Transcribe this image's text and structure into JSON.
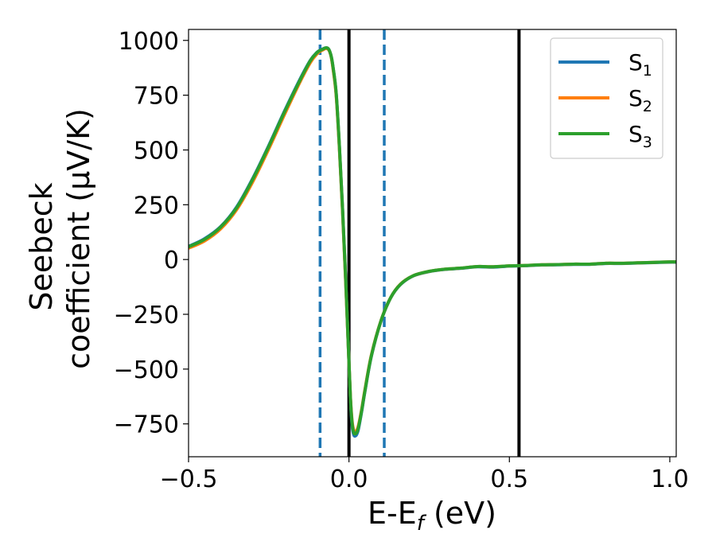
{
  "chart_data": {
    "type": "line",
    "xlabel": "E-E_f (eV)",
    "ylabel_line1": "Seebeck",
    "ylabel_line2": "coefficient  (μV/K)",
    "xlim": [
      -0.5,
      1.02
    ],
    "ylim": [
      -900,
      1050
    ],
    "xticks": [
      -0.5,
      0.0,
      0.5,
      1.0
    ],
    "xtick_labels": [
      "−0.5",
      "0.0",
      "0.5",
      "1.0"
    ],
    "yticks": [
      1000,
      750,
      500,
      250,
      0,
      -250,
      -500,
      -750
    ],
    "ytick_labels": [
      "1000",
      "750",
      "500",
      "250",
      "0",
      "−250",
      "−500",
      "−750"
    ],
    "grid": false,
    "legend_position": "top-right",
    "vlines": [
      {
        "x": -0.09,
        "style": "dashed",
        "color": "#1f77b4"
      },
      {
        "x": 0.11,
        "style": "dashed",
        "color": "#1f77b4"
      },
      {
        "x": 0.0,
        "style": "solid",
        "color": "#000000"
      },
      {
        "x": 0.53,
        "style": "solid",
        "color": "#000000"
      }
    ],
    "series": [
      {
        "name": "S_1",
        "legend_main": "S",
        "legend_sub": "1",
        "color": "#1f77b4",
        "x": [
          -0.5,
          -0.45,
          -0.4,
          -0.35,
          -0.3,
          -0.25,
          -0.2,
          -0.15,
          -0.12,
          -0.1,
          -0.09,
          -0.08,
          -0.075,
          -0.07,
          -0.065,
          -0.06,
          -0.055,
          -0.05,
          -0.04,
          -0.03,
          -0.02,
          -0.01,
          0.0,
          0.005,
          0.01,
          0.015,
          0.02,
          0.025,
          0.03,
          0.04,
          0.05,
          0.07,
          0.1,
          0.13,
          0.16,
          0.2,
          0.25,
          0.3,
          0.35,
          0.4,
          0.45,
          0.5,
          0.55,
          0.6,
          0.65,
          0.7,
          0.75,
          0.8,
          0.85,
          0.9,
          0.95,
          1.0,
          1.02
        ],
        "y": [
          60,
          95,
          150,
          240,
          370,
          520,
          680,
          830,
          910,
          945,
          955,
          962,
          965,
          966,
          963,
          950,
          925,
          880,
          760,
          520,
          230,
          -100,
          -470,
          -650,
          -760,
          -800,
          -805,
          -795,
          -770,
          -690,
          -600,
          -440,
          -280,
          -175,
          -115,
          -75,
          -55,
          -45,
          -40,
          -33,
          -35,
          -30,
          -28,
          -25,
          -24,
          -22,
          -22,
          -18,
          -18,
          -16,
          -14,
          -12,
          -12
        ]
      },
      {
        "name": "S_2",
        "legend_main": "S",
        "legend_sub": "2",
        "color": "#ff7f0e",
        "x": [
          -0.5,
          -0.45,
          -0.4,
          -0.35,
          -0.3,
          -0.25,
          -0.2,
          -0.15,
          -0.12,
          -0.1,
          -0.09,
          -0.08,
          -0.075,
          -0.07,
          -0.065,
          -0.06,
          -0.055,
          -0.05,
          -0.04,
          -0.03,
          -0.02,
          -0.01,
          0.0,
          0.005,
          0.01,
          0.015,
          0.02,
          0.025,
          0.03,
          0.04,
          0.05,
          0.07,
          0.1,
          0.13,
          0.16,
          0.2,
          0.25,
          0.3,
          0.35,
          0.4,
          0.45,
          0.5,
          0.55,
          0.6,
          0.65,
          0.7,
          0.75,
          0.8,
          0.85,
          0.9,
          0.95,
          1.0,
          1.02
        ],
        "y": [
          52,
          85,
          140,
          228,
          355,
          505,
          665,
          818,
          900,
          938,
          950,
          958,
          962,
          963,
          960,
          948,
          922,
          875,
          752,
          512,
          220,
          -110,
          -470,
          -640,
          -740,
          -780,
          -785,
          -778,
          -755,
          -680,
          -592,
          -435,
          -278,
          -174,
          -113,
          -74,
          -54,
          -44,
          -39,
          -32,
          -33,
          -29,
          -27,
          -24,
          -23,
          -21,
          -21,
          -17,
          -17,
          -15,
          -13,
          -11,
          -11
        ]
      },
      {
        "name": "S_3",
        "legend_main": "S",
        "legend_sub": "3",
        "color": "#2ca02c",
        "x": [
          -0.5,
          -0.45,
          -0.4,
          -0.35,
          -0.3,
          -0.25,
          -0.2,
          -0.15,
          -0.12,
          -0.1,
          -0.09,
          -0.08,
          -0.075,
          -0.07,
          -0.065,
          -0.06,
          -0.055,
          -0.05,
          -0.04,
          -0.03,
          -0.02,
          -0.01,
          0.0,
          0.005,
          0.01,
          0.015,
          0.02,
          0.025,
          0.03,
          0.04,
          0.05,
          0.07,
          0.1,
          0.13,
          0.16,
          0.2,
          0.25,
          0.3,
          0.35,
          0.4,
          0.45,
          0.5,
          0.55,
          0.6,
          0.65,
          0.7,
          0.75,
          0.8,
          0.85,
          0.9,
          0.95,
          1.0,
          1.02
        ],
        "y": [
          58,
          92,
          148,
          236,
          366,
          516,
          676,
          826,
          908,
          944,
          954,
          961,
          965,
          966,
          963,
          950,
          925,
          882,
          762,
          522,
          232,
          -98,
          -468,
          -645,
          -750,
          -790,
          -795,
          -787,
          -763,
          -686,
          -597,
          -438,
          -279,
          -174,
          -114,
          -74,
          -54,
          -44,
          -39,
          -32,
          -33,
          -29,
          -27,
          -24,
          -23,
          -21,
          -21,
          -17,
          -17,
          -15,
          -13,
          -11,
          -11
        ]
      }
    ]
  }
}
